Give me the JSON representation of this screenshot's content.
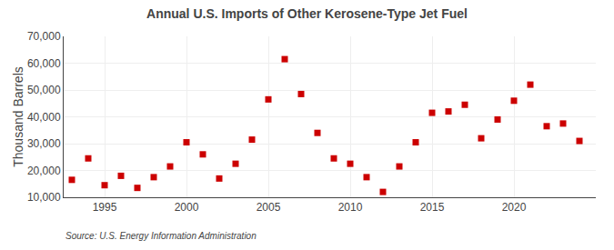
{
  "chart_data": {
    "type": "scatter",
    "title": "Annual U.S. Imports of Other Kerosene-Type Jet Fuel",
    "ylabel": "Thousand Barrels",
    "annotations": [
      "Source: U.S. Energy Information Administration"
    ],
    "x": [
      1993,
      1994,
      1995,
      1996,
      1997,
      1998,
      1999,
      2000,
      2001,
      2002,
      2003,
      2004,
      2005,
      2006,
      2007,
      2008,
      2009,
      2010,
      2011,
      2012,
      2013,
      2014,
      2015,
      2016,
      2017,
      2018,
      2019,
      2020,
      2021,
      2022,
      2023,
      2024
    ],
    "values": [
      16500,
      24500,
      14500,
      18000,
      13500,
      17500,
      21500,
      30500,
      26000,
      17000,
      22500,
      31500,
      46500,
      61500,
      48500,
      34000,
      24500,
      22500,
      17500,
      12000,
      21500,
      30500,
      41500,
      42000,
      44500,
      32000,
      39000,
      46000,
      52000,
      36500,
      37500,
      31000
    ],
    "color": "#cc0000",
    "marker": "square",
    "xlim": [
      1992.5,
      2025
    ],
    "ylim": [
      10000,
      70000
    ],
    "xticks": [
      1995,
      2000,
      2005,
      2010,
      2015,
      2020
    ],
    "yticks": [
      {
        "value": 10000,
        "label": "10,000"
      },
      {
        "value": 20000,
        "label": "20,000"
      },
      {
        "value": 30000,
        "label": "30,000"
      },
      {
        "value": 40000,
        "label": "40,000"
      },
      {
        "value": 50000,
        "label": "50,000"
      },
      {
        "value": 60000,
        "label": "60,000"
      },
      {
        "value": 70000,
        "label": "70,000"
      }
    ],
    "grid": true
  }
}
